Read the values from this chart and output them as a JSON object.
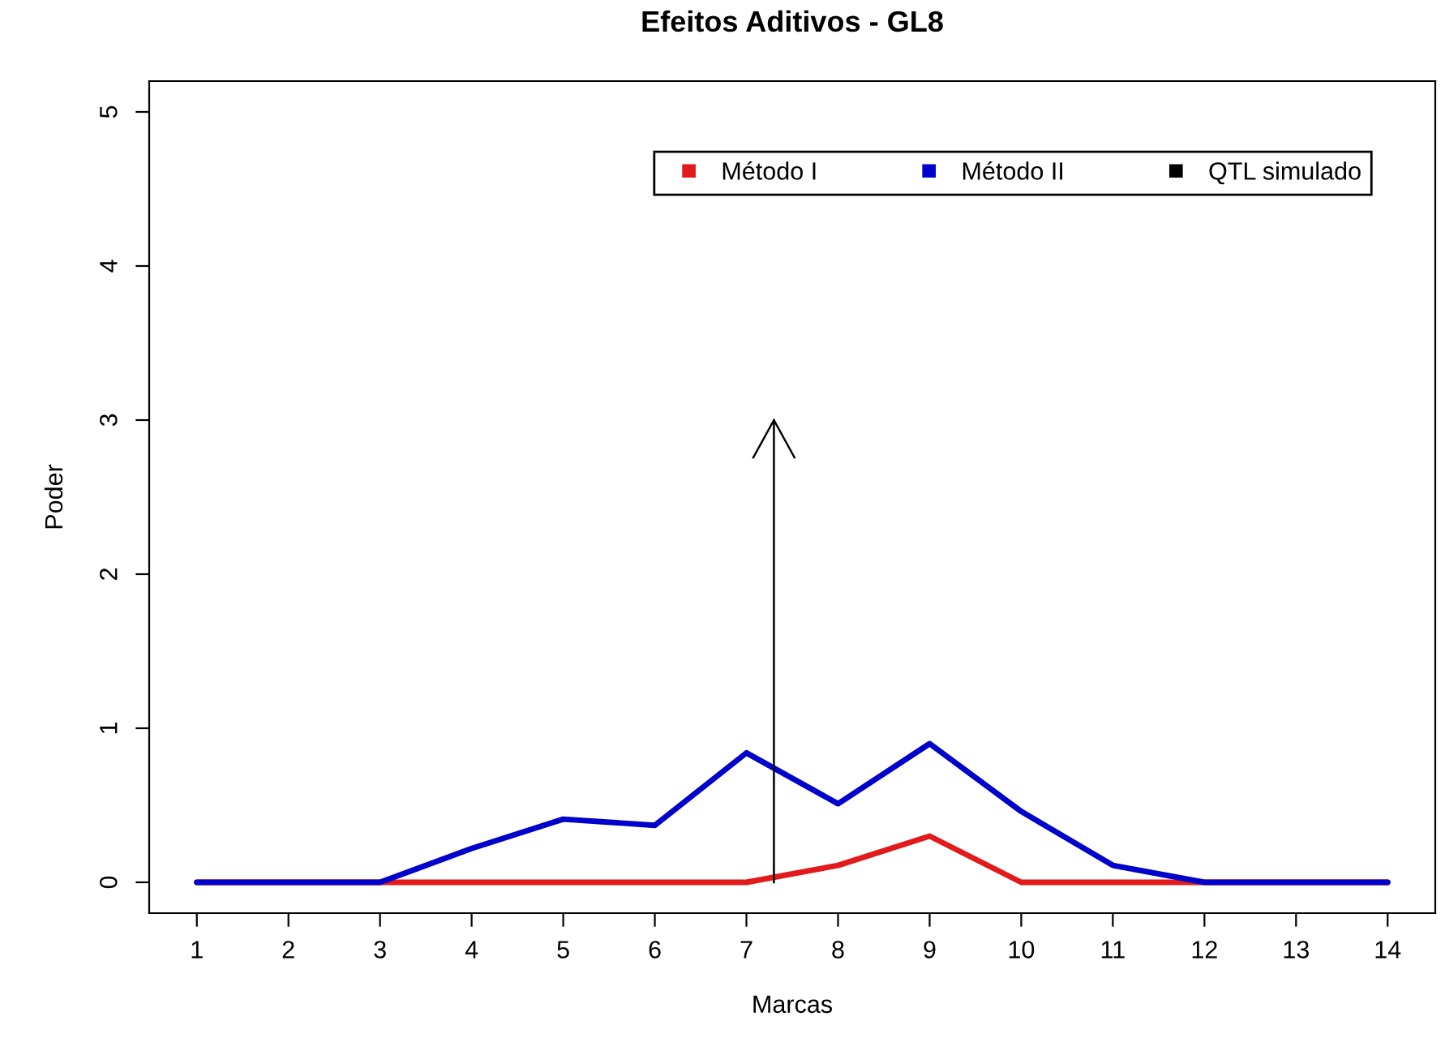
{
  "chart_data": {
    "type": "line",
    "title": "Efeitos Aditivos - GL8",
    "xlabel": "Marcas",
    "ylabel": "Poder",
    "x": [
      1,
      2,
      3,
      4,
      5,
      6,
      7,
      8,
      9,
      10,
      11,
      12,
      13,
      14
    ],
    "series": [
      {
        "name": "Método I",
        "color": "#e31a1c",
        "values": [
          0,
          0,
          0,
          0,
          0,
          0,
          0,
          0.11,
          0.3,
          0,
          0,
          0,
          0,
          0
        ]
      },
      {
        "name": "Método II",
        "color": "#0000cc",
        "values": [
          0,
          0,
          0,
          0.22,
          0.41,
          0.37,
          0.84,
          0.51,
          0.9,
          0.46,
          0.11,
          0,
          0,
          0
        ]
      },
      {
        "name": "QTL simulado",
        "color": "#000000",
        "type": "line",
        "x": [
          7.3,
          7.3
        ],
        "values": [
          0,
          3
        ]
      }
    ],
    "xlim": [
      0.48,
      14.52
    ],
    "ylim": [
      -0.2,
      5.2
    ],
    "xticks": [
      1,
      2,
      3,
      4,
      5,
      6,
      7,
      8,
      9,
      10,
      11,
      12,
      13,
      14
    ],
    "yticks": [
      0,
      1,
      2,
      3,
      4,
      5
    ],
    "legend": "top right",
    "grid": false
  }
}
